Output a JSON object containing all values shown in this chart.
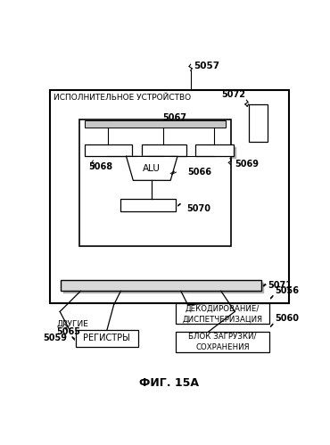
{
  "bg_color": "#ffffff",
  "fig_caption": "ФИГ. 15А",
  "outer_box_label": "ИСПОЛНИТЕЛЬНОЕ УСТРОЙСТВО",
  "alu_label": "ALU",
  "other_label": "ДРУГИЕ",
  "registers_label": "РЕГИСТРЫ",
  "decode_label": "ДЕКОДИРОВАНИЕ/\nДИСПЕТЧЕРИЗАЦИЯ",
  "load_label": "БЛОК ЗАГРУЗКИ/\nСОХРАНЕНИЯ",
  "label_5057": "5057",
  "label_5072": "5072",
  "label_5067": "5067",
  "label_5068": "5068",
  "label_5069": "5069",
  "label_5066": "5066",
  "label_5070": "5070",
  "label_5071": "5071",
  "label_5065": "5065",
  "label_5059": "5059",
  "label_5056": "5056",
  "label_5060": "5060"
}
